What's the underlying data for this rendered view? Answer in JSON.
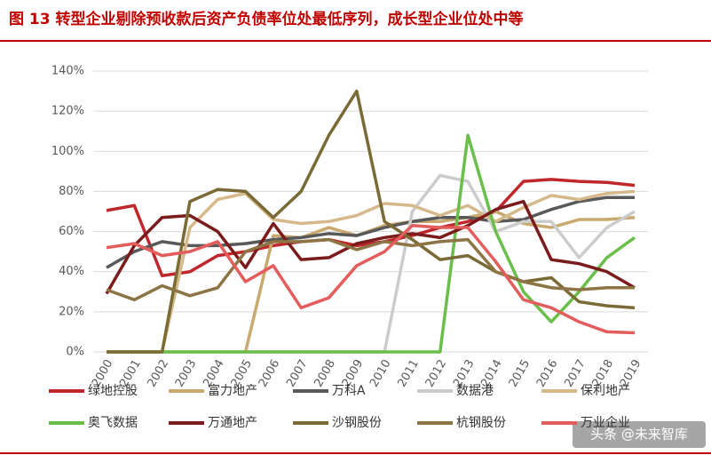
{
  "chart_data": {
    "type": "line",
    "title": "图 13   转型企业剔除预收款后资产负债率位处最低序列，成长型企业位处中等",
    "watermark": "头条 @未来智库",
    "categories": [
      "2000",
      "2001",
      "2002",
      "2003",
      "2004",
      "2005",
      "2006",
      "2007",
      "2008",
      "2009",
      "2010",
      "2011",
      "2012",
      "2013",
      "2014",
      "2015",
      "2016",
      "2017",
      "2018",
      "2019"
    ],
    "ylim": [
      0,
      140
    ],
    "yticks": [
      {
        "value": 0,
        "label": "0%"
      },
      {
        "value": 20,
        "label": "20%"
      },
      {
        "value": 40,
        "label": "40%"
      },
      {
        "value": 60,
        "label": "60%"
      },
      {
        "value": 80,
        "label": "80%"
      },
      {
        "value": 100,
        "label": "100%"
      },
      {
        "value": 120,
        "label": "120%"
      },
      {
        "value": 140,
        "label": "140%"
      }
    ],
    "grid": true,
    "series": [
      {
        "name": "绿地控股",
        "color": "#c0272d",
        "values": [
          70.5,
          73,
          38,
          40,
          48,
          50,
          53,
          55,
          56,
          53,
          55,
          58,
          62,
          65,
          70,
          85,
          86,
          85,
          84.5,
          83
        ]
      },
      {
        "name": "富力地产",
        "color": "#c9a96e",
        "values": [
          0,
          0,
          0,
          0,
          0,
          0,
          58,
          57,
          62,
          58,
          63,
          65,
          65,
          67,
          70,
          64,
          62,
          66,
          66,
          67
        ]
      },
      {
        "name": "万科A",
        "color": "#595959",
        "values": [
          42,
          50,
          55,
          53,
          53,
          54,
          56,
          57,
          59,
          58,
          62,
          65,
          67,
          67,
          65,
          66,
          71,
          75,
          77,
          77
        ]
      },
      {
        "name": "数据港",
        "color": "#cccccc",
        "values": [
          0,
          0,
          0,
          0,
          0,
          0,
          0,
          0,
          0,
          0,
          0,
          70,
          88,
          85,
          60,
          65,
          65,
          47,
          62,
          70
        ]
      },
      {
        "name": "保利地产",
        "color": "#d6b98a",
        "values": [
          0,
          0,
          0,
          62,
          76,
          79,
          66,
          64,
          65,
          68,
          74,
          73,
          68,
          73,
          65,
          72,
          78,
          76,
          79,
          80
        ]
      },
      {
        "name": "奥飞数据",
        "color": "#6abf4b",
        "values": [
          0,
          0,
          0,
          0,
          0,
          0,
          0,
          0,
          0,
          0,
          0,
          0,
          0,
          108,
          60,
          30,
          15,
          30,
          47,
          57
        ]
      },
      {
        "name": "万通地产",
        "color": "#7a1c1c",
        "values": [
          29,
          53,
          67,
          68,
          60,
          42,
          64,
          46,
          47,
          54,
          57,
          59,
          57,
          63,
          71,
          75,
          46,
          44,
          40,
          32
        ]
      },
      {
        "name": "沙钢股份",
        "color": "#7a6a35",
        "values": [
          0,
          0,
          0,
          75,
          81,
          80,
          67,
          80,
          108,
          130,
          65,
          56,
          46,
          48,
          40,
          35,
          37,
          25,
          23,
          22
        ]
      },
      {
        "name": "杭钢股份",
        "color": "#8c7445",
        "values": [
          31,
          26,
          33,
          28,
          32,
          50,
          55,
          55,
          56,
          51,
          55,
          53,
          55,
          56,
          40,
          35,
          32,
          31,
          32,
          32
        ]
      },
      {
        "name": "万业企业",
        "color": "#e35d5d",
        "values": [
          52,
          54,
          48,
          50,
          55,
          35,
          43,
          22,
          27,
          43,
          50,
          63,
          62,
          62,
          45,
          26,
          22,
          15,
          10,
          9.5
        ]
      }
    ]
  }
}
